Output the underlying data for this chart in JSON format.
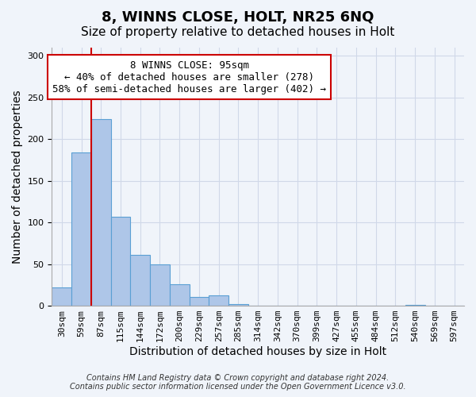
{
  "title": "8, WINNS CLOSE, HOLT, NR25 6NQ",
  "subtitle": "Size of property relative to detached houses in Holt",
  "xlabel": "Distribution of detached houses by size in Holt",
  "ylabel": "Number of detached properties",
  "bar_values": [
    22,
    184,
    224,
    107,
    61,
    50,
    26,
    11,
    12,
    2,
    0,
    0,
    0,
    0,
    0,
    0,
    0,
    0,
    1,
    0,
    0
  ],
  "bin_labels": [
    "30sqm",
    "59sqm",
    "87sqm",
    "115sqm",
    "144sqm",
    "172sqm",
    "200sqm",
    "229sqm",
    "257sqm",
    "285sqm",
    "314sqm",
    "342sqm",
    "370sqm",
    "399sqm",
    "427sqm",
    "455sqm",
    "484sqm",
    "512sqm",
    "540sqm",
    "569sqm",
    "597sqm"
  ],
  "bar_color": "#aec6e8",
  "bar_edge_color": "#5a9fd4",
  "bg_color": "#f0f4fa",
  "grid_color": "#d0d8e8",
  "vline_color": "#cc0000",
  "vline_pos": 1.5,
  "ylim": [
    0,
    310
  ],
  "yticks": [
    0,
    50,
    100,
    150,
    200,
    250,
    300
  ],
  "annotation_title": "8 WINNS CLOSE: 95sqm",
  "annotation_line1": "← 40% of detached houses are smaller (278)",
  "annotation_line2": "58% of semi-detached houses are larger (402) →",
  "annotation_box_color": "#ffffff",
  "annotation_box_edge": "#cc0000",
  "footer1": "Contains HM Land Registry data © Crown copyright and database right 2024.",
  "footer2": "Contains public sector information licensed under the Open Government Licence v3.0.",
  "title_fontsize": 13,
  "subtitle_fontsize": 11,
  "axis_label_fontsize": 10,
  "tick_fontsize": 8,
  "annotation_fontsize": 9,
  "footer_fontsize": 7
}
